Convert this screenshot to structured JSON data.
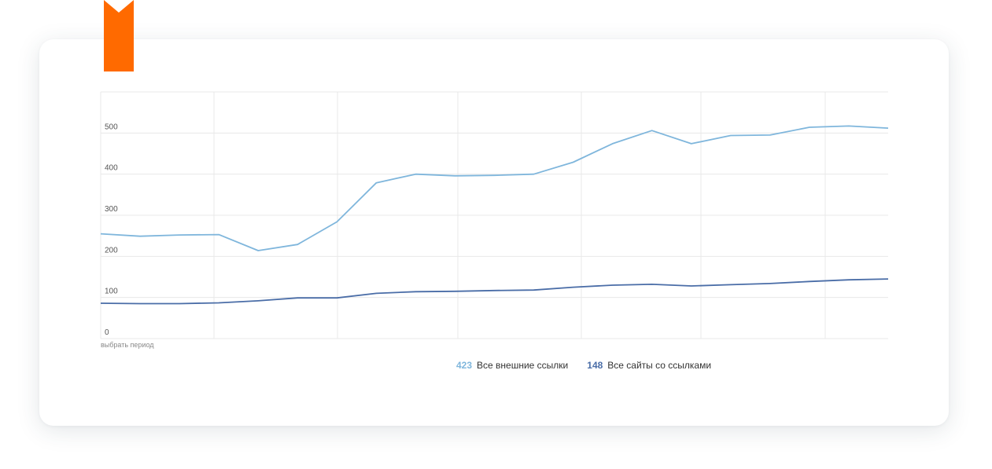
{
  "colors": {
    "accent": "#FF6A00",
    "series_light": "#7FB6DC",
    "series_dark": "#4A6DA7",
    "grid": "#E8E8E8"
  },
  "period_link": "выбрать период",
  "legend": [
    {
      "value": "423",
      "label": "Все внешние ссылки",
      "color": "#7FB6DC"
    },
    {
      "value": "148",
      "label": "Все сайты со ссылками",
      "color": "#4A6DA7"
    }
  ],
  "chart_data": {
    "type": "line",
    "title": "",
    "xlabel": "",
    "ylabel": "",
    "ylim": [
      0,
      600
    ],
    "yticks": [
      "0",
      "100",
      "200",
      "300",
      "400",
      "500"
    ],
    "grid": true,
    "legend_placement": "bottom",
    "x": [
      0,
      1,
      2,
      3,
      4,
      5,
      6,
      7,
      8,
      9,
      10,
      11,
      12,
      13,
      14,
      15,
      16,
      17,
      18,
      19,
      20
    ],
    "series": [
      {
        "name": "Все внешние ссылки",
        "color": "#7FB6DC",
        "values": [
          255,
          249,
          252,
          253,
          214,
          229,
          284,
          379,
          400,
          396,
          397,
          400,
          429,
          474,
          506,
          474,
          494,
          495,
          514,
          517,
          512
        ]
      },
      {
        "name": "Все сайты со ссылками",
        "color": "#4A6DA7",
        "values": [
          86,
          85,
          85,
          87,
          92,
          99,
          99,
          110,
          114,
          115,
          117,
          118,
          125,
          130,
          132,
          128,
          131,
          134,
          139,
          143,
          145
        ]
      }
    ]
  }
}
